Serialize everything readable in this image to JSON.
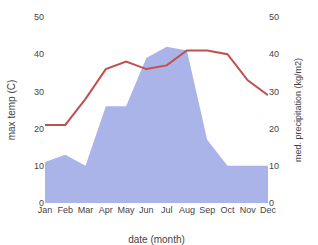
{
  "chart_data": {
    "type": "line",
    "categories": [
      "Jan",
      "Feb",
      "Mar",
      "Apr",
      "May",
      "Jun",
      "Jul",
      "Aug",
      "Sep",
      "Oct",
      "Nov",
      "Dec"
    ],
    "series": [
      {
        "type": "area",
        "axis": "y2",
        "color": "#aab4e8",
        "values": [
          11,
          13,
          10,
          26,
          26,
          39,
          42,
          41,
          17,
          10,
          10,
          10
        ]
      },
      {
        "type": "line",
        "color": "#c0504d",
        "values": [
          21,
          21,
          28,
          36,
          38,
          36,
          37,
          41,
          41,
          40,
          33,
          29
        ]
      }
    ],
    "xlabel": "date (month)",
    "ylabel": "max temp (C)",
    "y2label": "med. precipitation (kg/m2)",
    "ylim": [
      0,
      50
    ],
    "yticks": [
      0,
      10,
      20,
      30,
      40,
      50
    ],
    "y2lim": [
      0,
      50
    ],
    "y2ticks": [
      0,
      10,
      20,
      30,
      40,
      50
    ],
    "grid": false
  }
}
